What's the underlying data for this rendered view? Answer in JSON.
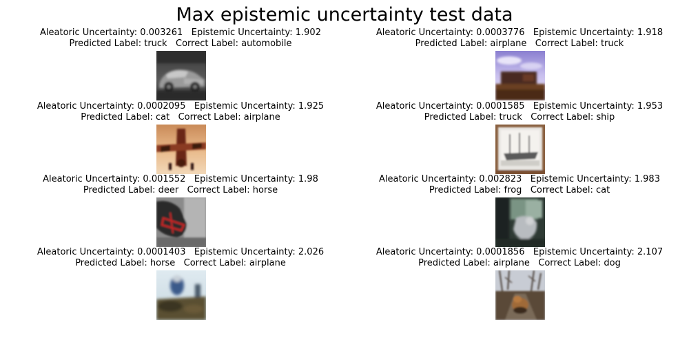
{
  "title": "Max epistemic uncertainty test data",
  "panels": [
    {
      "aleatoric": "Aleatoric Uncertainty: 0.003261",
      "epistemic": "Epistemic Uncertainty: 1.902",
      "predicted": "Predicted Label: truck",
      "correct": "Correct Label: automobile",
      "image": "silver-car-photo"
    },
    {
      "aleatoric": "Aleatoric Uncertainty: 0.0003776",
      "epistemic": "Epistemic Uncertainty: 1.918",
      "predicted": "Predicted Label: airplane",
      "correct": "Correct Label: truck",
      "image": "truck-under-purple-sky-photo"
    },
    {
      "aleatoric": "Aleatoric Uncertainty: 0.0002095",
      "epistemic": "Epistemic Uncertainty: 1.925",
      "predicted": "Predicted Label: cat",
      "correct": "Correct Label: airplane",
      "image": "airplane-orange-sky-photo"
    },
    {
      "aleatoric": "Aleatoric Uncertainty: 0.0001585",
      "epistemic": "Epistemic Uncertainty: 1.953",
      "predicted": "Predicted Label: truck",
      "correct": "Correct Label: ship",
      "image": "framed-ship-photo"
    },
    {
      "aleatoric": "Aleatoric Uncertainty: 0.001552",
      "epistemic": "Epistemic Uncertainty: 1.98",
      "predicted": "Predicted Label: deer",
      "correct": "Correct Label: horse",
      "image": "horse-head-photo"
    },
    {
      "aleatoric": "Aleatoric Uncertainty: 0.002823",
      "epistemic": "Epistemic Uncertainty: 1.983",
      "predicted": "Predicted Label: frog",
      "correct": "Correct Label: cat",
      "image": "cat-by-window-photo"
    },
    {
      "aleatoric": "Aleatoric Uncertainty: 0.0001403",
      "epistemic": "Epistemic Uncertainty: 2.026",
      "predicted": "Predicted Label: horse",
      "correct": "Correct Label: airplane",
      "image": "blurry-airfield-photo"
    },
    {
      "aleatoric": "Aleatoric Uncertainty: 0.0001856",
      "epistemic": "Epistemic Uncertainty: 2.107",
      "predicted": "Predicted Label: airplane",
      "correct": "Correct Label: dog",
      "image": "dog-on-path-photo"
    }
  ]
}
